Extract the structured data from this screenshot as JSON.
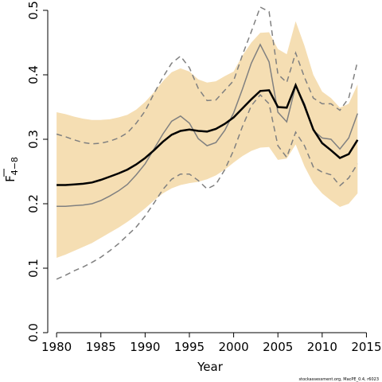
{
  "chart_data": {
    "type": "line",
    "xlabel": "Year",
    "ylabel": "F̄ 4–8",
    "ylabel_main": "F",
    "ylabel_sub": "4−8",
    "xlim": [
      1980,
      2014
    ],
    "ylim": [
      0,
      0.5
    ],
    "x_ticks": [
      1980,
      1985,
      1990,
      1995,
      2000,
      2005,
      2010,
      2015
    ],
    "x_tick_labels": [
      "1980",
      "1985",
      "1990",
      "1995",
      "2000",
      "2005",
      "2010",
      "2015"
    ],
    "y_ticks": [
      0.0,
      0.1,
      0.2,
      0.3,
      0.4,
      0.5
    ],
    "y_tick_labels": [
      "0.0",
      "0.1",
      "0.2",
      "0.3",
      "0.4",
      "0.5"
    ],
    "grid": false,
    "legend": "none",
    "footer_text": "stockassessment.org, MacPE_0.4, r6023",
    "colors": {
      "band": "#f5deb3",
      "estimate": "#000000",
      "previous": "#808080"
    },
    "x": [
      1980,
      1981,
      1982,
      1983,
      1984,
      1985,
      1986,
      1987,
      1988,
      1989,
      1990,
      1991,
      1992,
      1993,
      1994,
      1995,
      1996,
      1997,
      1998,
      1999,
      2000,
      2001,
      2002,
      2003,
      2004,
      2005,
      2006,
      2007,
      2008,
      2009,
      2010,
      2011,
      2012,
      2013,
      2014
    ],
    "series": [
      {
        "role": "estimate",
        "values": [
          0.229,
          0.229,
          0.23,
          0.231,
          0.233,
          0.237,
          0.242,
          0.247,
          0.253,
          0.261,
          0.271,
          0.283,
          0.296,
          0.307,
          0.313,
          0.315,
          0.313,
          0.312,
          0.316,
          0.324,
          0.334,
          0.348,
          0.362,
          0.375,
          0.376,
          0.35,
          0.349,
          0.384,
          0.352,
          0.315,
          0.294,
          0.283,
          0.271,
          0.277,
          0.299
        ]
      },
      {
        "role": "band-upper",
        "values": [
          0.342,
          0.339,
          0.335,
          0.332,
          0.33,
          0.33,
          0.331,
          0.334,
          0.338,
          0.346,
          0.358,
          0.373,
          0.39,
          0.404,
          0.41,
          0.405,
          0.393,
          0.388,
          0.39,
          0.398,
          0.405,
          0.43,
          0.45,
          0.465,
          0.466,
          0.44,
          0.432,
          0.483,
          0.445,
          0.4,
          0.374,
          0.364,
          0.349,
          0.355,
          0.385
        ]
      },
      {
        "role": "band-lower",
        "values": [
          0.116,
          0.121,
          0.127,
          0.133,
          0.139,
          0.147,
          0.155,
          0.163,
          0.172,
          0.182,
          0.193,
          0.205,
          0.216,
          0.224,
          0.229,
          0.232,
          0.234,
          0.238,
          0.244,
          0.253,
          0.264,
          0.274,
          0.282,
          0.287,
          0.288,
          0.268,
          0.27,
          0.292,
          0.258,
          0.232,
          0.216,
          0.205,
          0.195,
          0.2,
          0.216
        ]
      },
      {
        "role": "previous-estimate",
        "values": [
          0.196,
          0.196,
          0.197,
          0.198,
          0.2,
          0.205,
          0.212,
          0.22,
          0.23,
          0.245,
          0.262,
          0.285,
          0.308,
          0.328,
          0.336,
          0.325,
          0.301,
          0.29,
          0.295,
          0.314,
          0.341,
          0.378,
          0.418,
          0.447,
          0.42,
          0.342,
          0.327,
          0.383,
          0.355,
          0.314,
          0.302,
          0.3,
          0.285,
          0.302,
          0.34
        ]
      },
      {
        "role": "previous-upper",
        "values": [
          0.308,
          0.304,
          0.299,
          0.295,
          0.293,
          0.294,
          0.297,
          0.302,
          0.31,
          0.325,
          0.344,
          0.371,
          0.396,
          0.418,
          0.429,
          0.411,
          0.379,
          0.36,
          0.361,
          0.376,
          0.391,
          0.431,
          0.467,
          0.505,
          0.498,
          0.401,
          0.388,
          0.434,
          0.396,
          0.364,
          0.355,
          0.355,
          0.345,
          0.364,
          0.421
        ]
      },
      {
        "role": "previous-lower",
        "values": [
          0.083,
          0.089,
          0.096,
          0.102,
          0.109,
          0.117,
          0.127,
          0.138,
          0.151,
          0.164,
          0.181,
          0.201,
          0.222,
          0.238,
          0.246,
          0.246,
          0.236,
          0.223,
          0.23,
          0.253,
          0.283,
          0.32,
          0.352,
          0.369,
          0.355,
          0.29,
          0.272,
          0.311,
          0.29,
          0.257,
          0.249,
          0.245,
          0.228,
          0.24,
          0.262
        ]
      }
    ]
  }
}
